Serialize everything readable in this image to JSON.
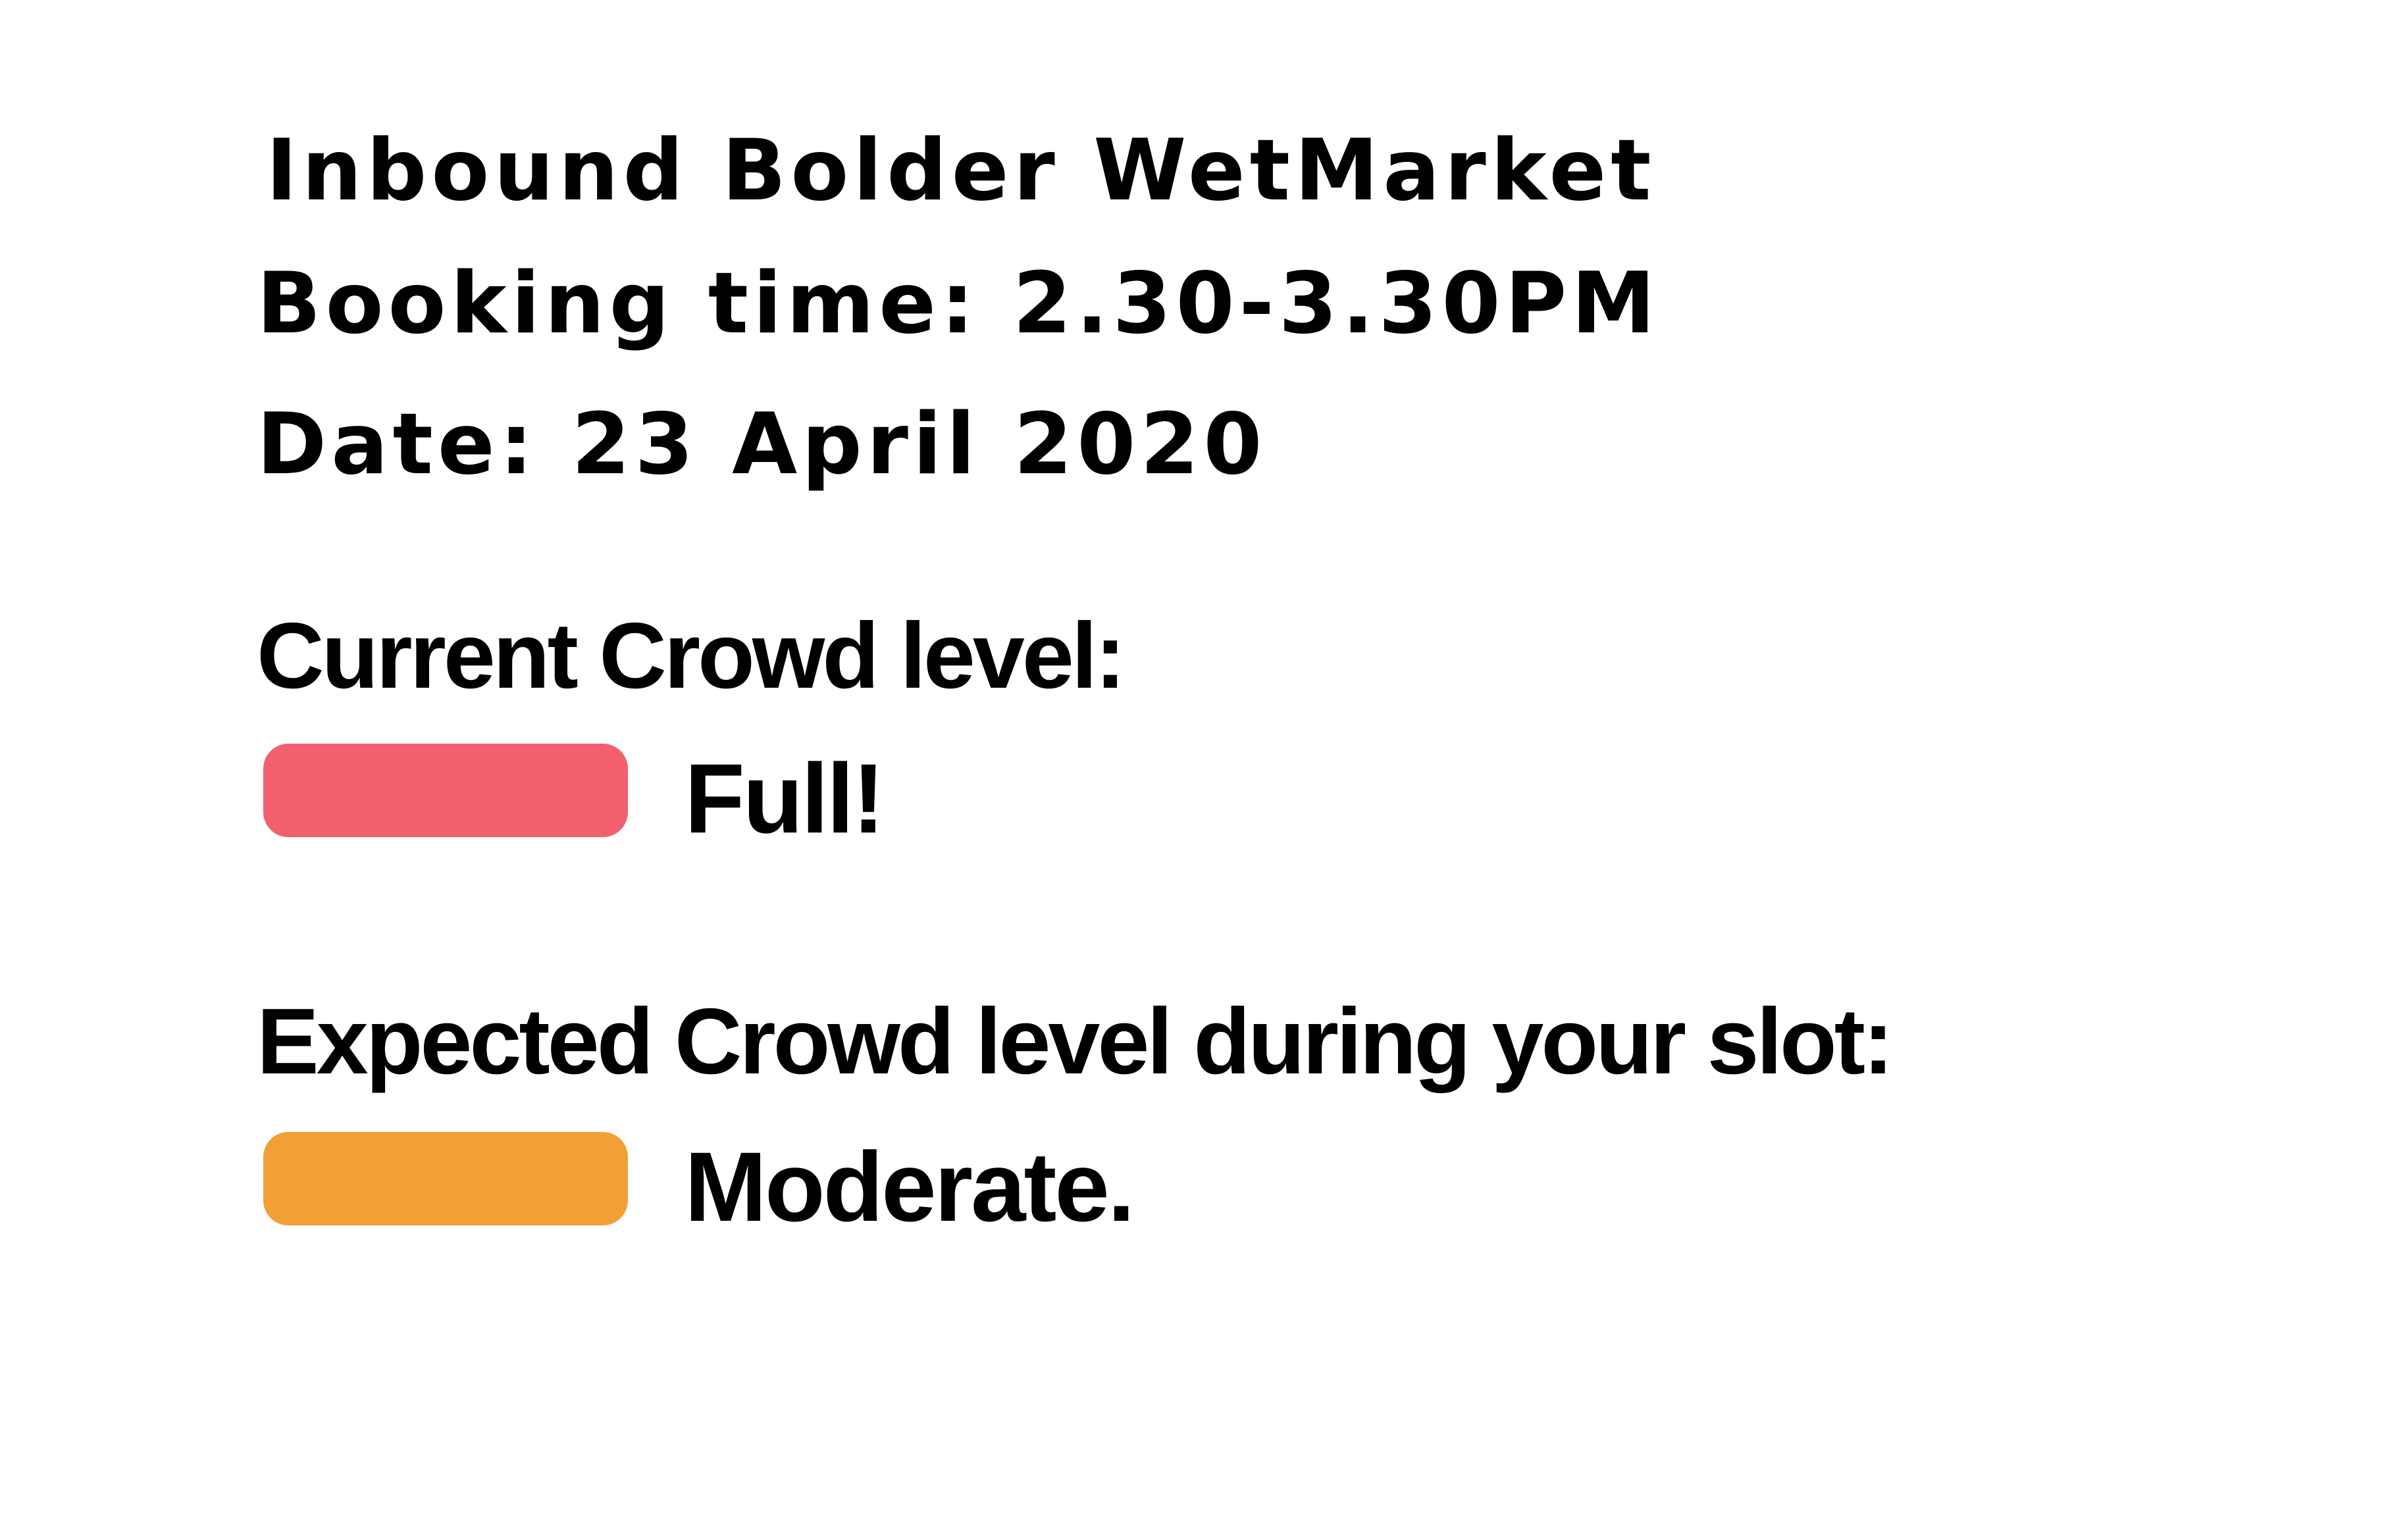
{
  "header": {
    "venue": "Inbound Bolder WetMarket",
    "booking_time": "Booking time: 2.30-3.30PM",
    "date": "Date: 23 April 2020"
  },
  "current_crowd": {
    "label": "Current Crowd level:",
    "status": "Full!",
    "color": "#f2606e"
  },
  "expected_crowd": {
    "label": "Expected Crowd level during your slot:",
    "status": "Moderate.",
    "color": "#f0a035"
  }
}
